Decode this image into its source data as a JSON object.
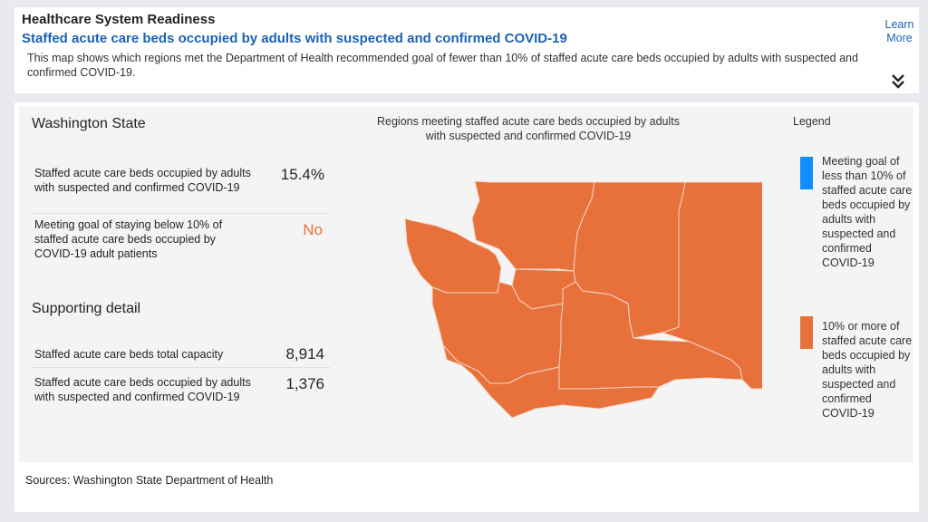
{
  "header": {
    "title": "Healthcare System Readiness",
    "subtitle": "Staffed acute care beds occupied by adults with suspected and confirmed COVID-19",
    "description": "This map shows which regions met the Department of Health recommended goal of fewer than 10% of staffed acute care beds occupied by adults with suspected and confirmed COVID-19.",
    "learn_more": "Learn More",
    "expand_icon": "double-chevron-down-icon"
  },
  "state": {
    "title": "Washington State",
    "rows": [
      {
        "label": "Staffed acute care beds occupied by adults with suspected and confirmed COVID-19",
        "value": "15.4%"
      },
      {
        "label": "Meeting goal of staying below 10% of staffed acute care beds occupied by COVID-19 adult patients",
        "value": "No"
      }
    ]
  },
  "supporting": {
    "title": "Supporting detail",
    "rows": [
      {
        "label": "Staffed acute care beds total capacity",
        "value": "8,914"
      },
      {
        "label": "Staffed acute care beds occupied by adults with suspected and confirmed COVID-19",
        "value": "1,376"
      }
    ]
  },
  "map": {
    "title": "Regions meeting staffed acute care beds occupied by adults with suspected and confirmed COVID-19",
    "region_count": 9,
    "regions_meeting_goal": 0,
    "region_color": "#e8703a",
    "border_color": "#f3d6c4"
  },
  "legend": {
    "title": "Legend",
    "items": [
      {
        "label": "Meeting goal of less than 10% of staffed acute care beds occupied by adults with suspected and confirmed COVID-19",
        "color": "#118dff"
      },
      {
        "label": "10% or more of staffed acute care beds occupied by adults with suspected and confirmed COVID-19",
        "color": "#e8703a"
      }
    ]
  },
  "sources": "Sources: Washington State Department of Health"
}
